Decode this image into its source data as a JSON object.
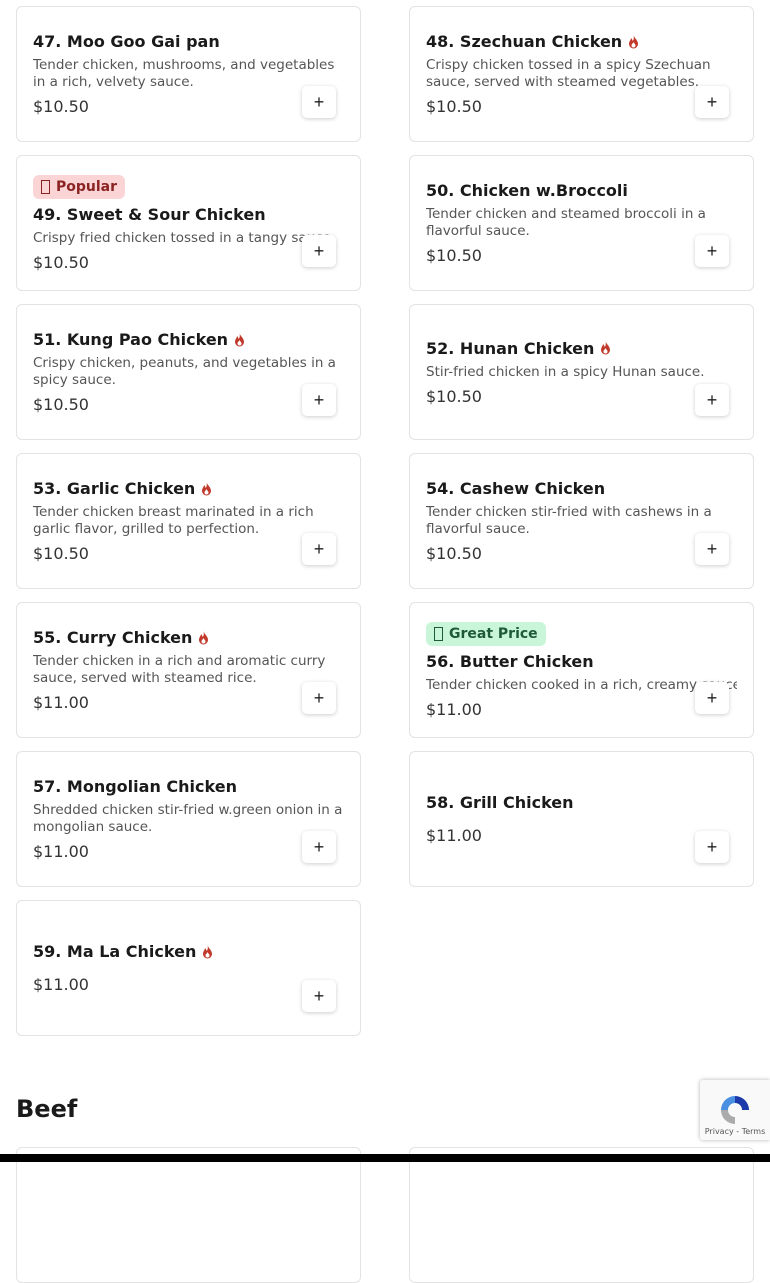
{
  "items": [
    {
      "num": "47.",
      "name": "Moo Goo Gai pan",
      "spicy": false,
      "desc": "Tender chicken, mushrooms, and vegetables in a rich, velvety sauce.",
      "price": "$10.50",
      "add": "+"
    },
    {
      "num": "48.",
      "name": "Szechuan Chicken",
      "spicy": true,
      "desc": "Crispy chicken tossed in a spicy Szechuan sauce, served with steamed vegetables.",
      "price": "$10.50",
      "add": "+"
    },
    {
      "num": "49.",
      "name": "Sweet & Sour Chicken",
      "spicy": false,
      "badge": {
        "label": "Popular",
        "icon": "?",
        "style": "red"
      },
      "desc": "Crispy fried chicken tossed in a tangy sauce.",
      "price": "$10.50",
      "add": "+"
    },
    {
      "num": "50.",
      "name": "Chicken w.Broccoli",
      "spicy": false,
      "desc": "Tender chicken and steamed broccoli in a flavorful sauce.",
      "price": "$10.50",
      "add": "+"
    },
    {
      "num": "51.",
      "name": "Kung Pao Chicken",
      "spicy": true,
      "desc": "Crispy chicken, peanuts, and vegetables in a spicy sauce.",
      "price": "$10.50",
      "add": "+"
    },
    {
      "num": "52.",
      "name": "Hunan Chicken",
      "spicy": true,
      "desc": "Stir-fried chicken in a spicy Hunan sauce.",
      "price": "$10.50",
      "add": "+"
    },
    {
      "num": "53.",
      "name": "Garlic Chicken",
      "spicy": true,
      "desc": "Tender chicken breast marinated in a rich garlic flavor, grilled to perfection.",
      "price": "$10.50",
      "add": "+"
    },
    {
      "num": "54.",
      "name": "Cashew Chicken",
      "spicy": false,
      "desc": "Tender chicken stir-fried with cashews in a flavorful sauce.",
      "price": "$10.50",
      "add": "+"
    },
    {
      "num": "55.",
      "name": "Curry Chicken",
      "spicy": true,
      "desc": "Tender chicken in a rich and aromatic curry sauce, served with steamed rice.",
      "price": "$11.00",
      "add": "+"
    },
    {
      "num": "56.",
      "name": "Butter Chicken",
      "spicy": false,
      "badge": {
        "label": "Great Price",
        "icon": "?",
        "style": "green"
      },
      "desc": "Tender chicken cooked in a rich, creamy sauce.",
      "price": "$11.00",
      "add": "+"
    },
    {
      "num": "57.",
      "name": "Mongolian Chicken",
      "spicy": false,
      "desc": "Shredded chicken stir-fried w.green onion in a mongolian sauce.",
      "price": "$11.00",
      "add": "+"
    },
    {
      "num": "58.",
      "name": "Grill Chicken",
      "spicy": false,
      "desc": "",
      "price": "$11.00",
      "add": "+"
    },
    {
      "num": "59.",
      "name": "Ma La Chicken",
      "spicy": true,
      "desc": "",
      "price": "$11.00",
      "add": "+"
    }
  ],
  "next_section": "Beef",
  "recaptcha": {
    "text": "Privacy - Terms"
  },
  "colors": {
    "spicy": "#c0392b"
  }
}
